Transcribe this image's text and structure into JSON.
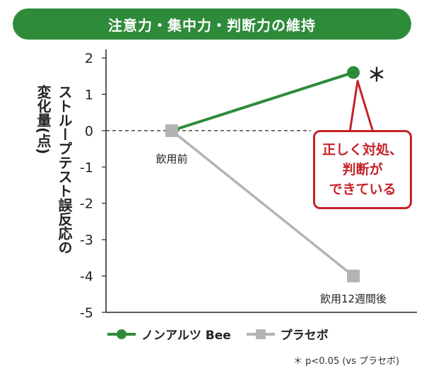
{
  "title": "注意力・集中力・判断力の維持",
  "ylabel_lines": [
    "ストループテスト誤反応の",
    "変化量(点)"
  ],
  "annotation": "正しく対処、\n判断が\nできている",
  "significance_mark": "＊",
  "footnote": "＊ p<0.05 (vs プラセボ)",
  "legend": [
    {
      "label": "ノンアルツ Bee",
      "marker": "circle",
      "color": "#2e8b3a"
    },
    {
      "label": "プラセボ",
      "marker": "square",
      "color": "#b3b3b3"
    }
  ],
  "chart_data": {
    "type": "line",
    "title": "注意力・集中力・判断力の維持",
    "ylabel": "ストループテスト誤反応の変化量(点)",
    "xlabel": "",
    "categories": [
      "飲用前",
      "飲用12週間後"
    ],
    "ylim": [
      -5,
      2
    ],
    "yticks": [
      2,
      1,
      0,
      -1,
      -2,
      -3,
      -4,
      -5
    ],
    "series": [
      {
        "name": "ノンアルツ Bee",
        "values": [
          0,
          1.6
        ],
        "color": "#2e8b3a",
        "marker": "circle"
      },
      {
        "name": "プラセボ",
        "values": [
          0,
          -4.0
        ],
        "color": "#b3b3b3",
        "marker": "square"
      }
    ],
    "zero_line": "dashed",
    "grid": false,
    "legend_position": "bottom-left"
  }
}
